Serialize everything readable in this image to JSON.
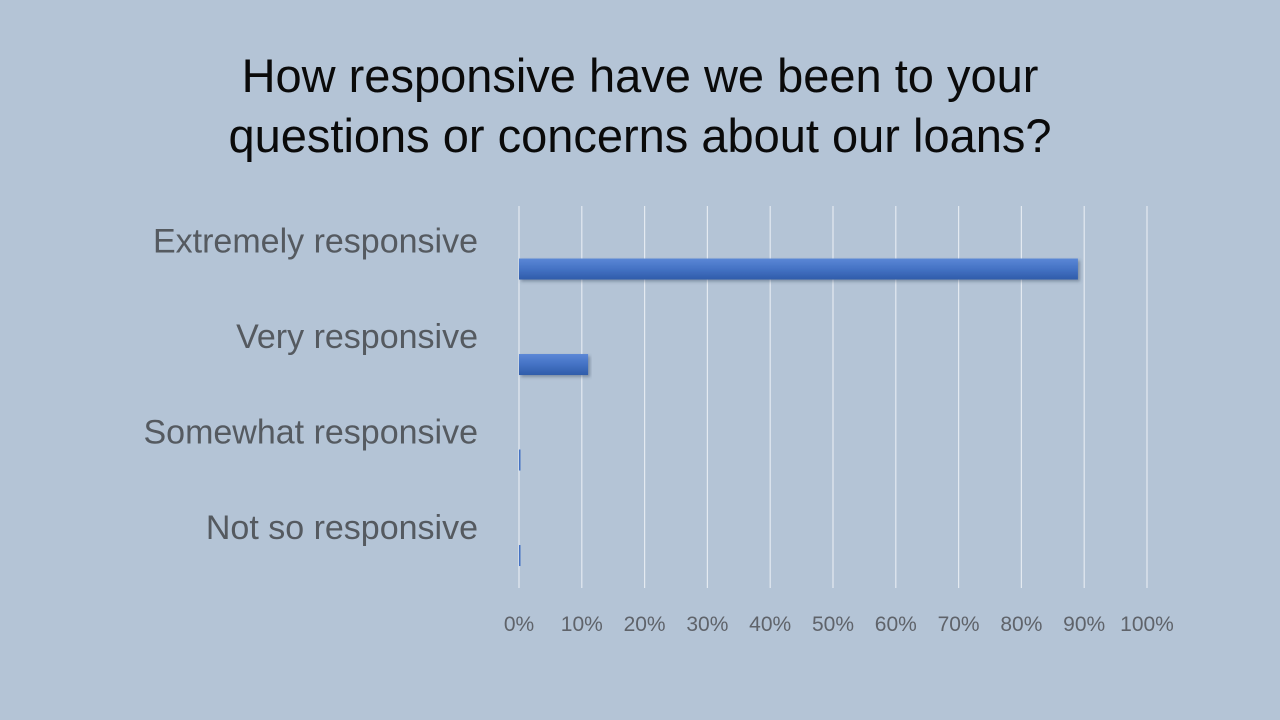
{
  "slide": {
    "title_line1": "How responsive have we been to your",
    "title_line2": "questions or concerns about our loans?"
  },
  "chart_data": {
    "type": "bar",
    "orientation": "horizontal",
    "categories": [
      "Extremely responsive",
      "Very responsive",
      "Somewhat responsive",
      "Not so responsive"
    ],
    "values": [
      89,
      11,
      0,
      0
    ],
    "xlim": [
      0,
      100
    ],
    "ticks": [
      0,
      10,
      20,
      30,
      40,
      50,
      60,
      70,
      80,
      90,
      100
    ],
    "tick_labels": [
      "0%",
      "10%",
      "20%",
      "30%",
      "40%",
      "50%",
      "60%",
      "70%",
      "80%",
      "90%",
      "100%"
    ],
    "grid": true,
    "bar_color": "#4472c4",
    "legend": "none",
    "xlabel": "",
    "ylabel": ""
  }
}
